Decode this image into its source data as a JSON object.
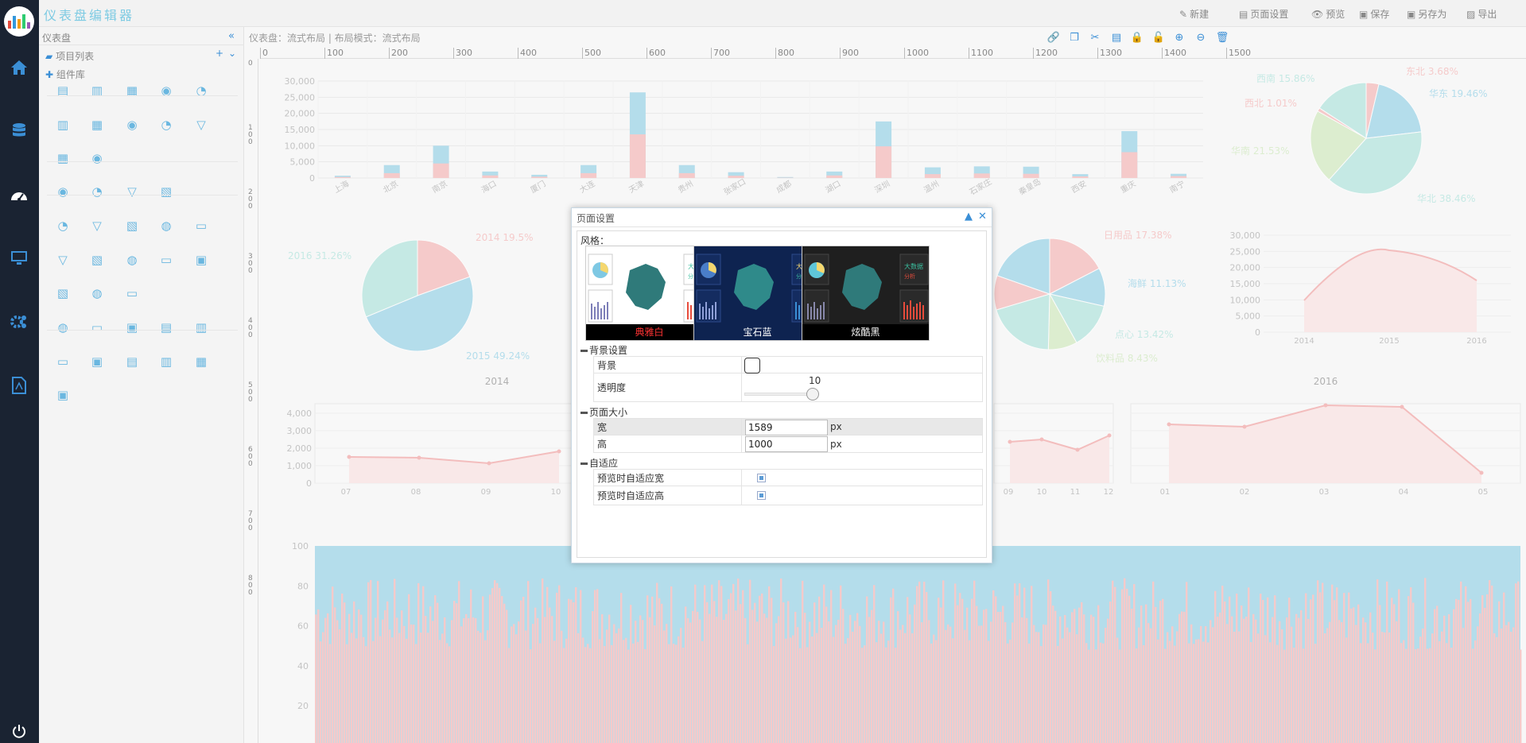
{
  "app": {
    "title": "仪表盘编辑器"
  },
  "toolbar": [
    {
      "key": "new",
      "label": "新建"
    },
    {
      "key": "page_settings",
      "label": "页面设置"
    },
    {
      "key": "preview",
      "label": "预览"
    },
    {
      "key": "save",
      "label": "保存"
    },
    {
      "key": "save_as",
      "label": "另存为"
    },
    {
      "key": "export",
      "label": "导出"
    }
  ],
  "sidebar": {
    "title": "仪表盘",
    "project_list": "项目列表",
    "component_library": "组件库"
  },
  "workspace": {
    "breadcrumb": "仪表盘：流式布局 | 布局模式：流式布局",
    "ruler_h": [
      "0",
      "100",
      "200",
      "300",
      "400",
      "500",
      "600",
      "700",
      "800",
      "900",
      "1000",
      "1100",
      "1200",
      "1300",
      "1400",
      "1500"
    ],
    "ruler_v": [
      "0",
      "1 0 0",
      "2 0 0",
      "3 0 0",
      "4 0 0",
      "5 0 0",
      "6 0 0",
      "7 0 0",
      "8 0 0"
    ]
  },
  "bar_chart": {
    "y_ticks": [
      "30,000",
      "25,000",
      "20,000",
      "15,000",
      "10,000",
      "5,000",
      "0"
    ],
    "categories": [
      "上海",
      "北京",
      "南京",
      "海口",
      "厦门",
      "大连",
      "天津",
      "贵州",
      "张家口",
      "成都",
      "湖口",
      "深圳",
      "温州",
      "石家庄",
      "秦皇岛",
      "西安",
      "重庆",
      "南宁"
    ],
    "series_a": [
      300,
      1500,
      4500,
      800,
      400,
      1500,
      13500,
      1500,
      700,
      100,
      800,
      9800,
      1200,
      1400,
      1300,
      500,
      8000,
      600
    ],
    "series_b": [
      700,
      4000,
      10000,
      2000,
      1000,
      4000,
      26500,
      4000,
      1800,
      300,
      2000,
      17500,
      3300,
      3600,
      3500,
      1200,
      14500,
      1300
    ],
    "colors": [
      "#f4a6a6",
      "#7ec8e3"
    ]
  },
  "pie_2014": {
    "caption": "2014",
    "slices": [
      {
        "label": "2014 19.5%",
        "value": 19.5,
        "color": "#f4a6a6"
      },
      {
        "label": "2015 49.24%",
        "value": 49.24,
        "color": "#7ec8e3"
      },
      {
        "label": "2016 31.26%",
        "value": 31.26,
        "color": "#9edfd6"
      }
    ]
  },
  "pie_region": {
    "slices": [
      {
        "label": "东北 3.68%",
        "value": 3.68,
        "color": "#f4a6a6"
      },
      {
        "label": "华东 19.46%",
        "value": 19.46,
        "color": "#7ec8e3"
      },
      {
        "label": "华北 38.46%",
        "value": 38.46,
        "color": "#9edfd6"
      },
      {
        "label": "华南 21.53%",
        "value": 21.53,
        "color": "#c6e5b0"
      },
      {
        "label": "西北 1.01%",
        "value": 1.01,
        "color": "#f4a6a6"
      },
      {
        "label": "西南 15.86%",
        "value": 15.86,
        "color": "#9edfd6"
      }
    ]
  },
  "pie_goods": {
    "slices": [
      {
        "label": "日用品 17.38%",
        "value": 17.38,
        "color": "#f4a6a6"
      },
      {
        "label": "海鲜 11.13%",
        "value": 11.13,
        "color": "#7ec8e3"
      },
      {
        "label": "点心 13.42%",
        "value": 13.42,
        "color": "#9edfd6"
      },
      {
        "label": "饮料品 8.43%",
        "value": 8.43,
        "color": "#c6e5b0"
      }
    ]
  },
  "area_2016": {
    "caption": "2016",
    "y_ticks": [
      "30,000",
      "25,000",
      "20,000",
      "15,000",
      "10,000",
      "5,000",
      "0"
    ],
    "x": [
      "2014",
      "2015",
      "2016"
    ]
  },
  "line_left": {
    "y_ticks": [
      "4,000",
      "3,000",
      "2,000",
      "1,000",
      "0"
    ],
    "x": [
      "07",
      "08",
      "09",
      "10"
    ]
  },
  "line_mid": {
    "x": [
      "09",
      "10",
      "11",
      "12"
    ]
  },
  "line_right": {
    "x": [
      "01",
      "02",
      "03",
      "04",
      "05"
    ]
  },
  "bottom_chart": {
    "y_ticks": [
      "100",
      "80",
      "60",
      "40",
      "20"
    ]
  },
  "dialog": {
    "title": "页面设置",
    "style_label": "风格：",
    "themes": [
      {
        "name": "典雅白",
        "color": "#ff3333"
      },
      {
        "name": "宝石蓝",
        "color": "#ffffff"
      },
      {
        "name": "炫酷黑",
        "color": "#ffffff"
      }
    ],
    "background_section": "背景设置",
    "background_label": "背景",
    "opacity_label": "透明度",
    "opacity_value": "10",
    "size_section": "页面大小",
    "width_label": "宽",
    "width_value": "1589",
    "height_label": "高",
    "height_value": "1000",
    "unit": "px",
    "adaptive_section": "自适应",
    "fit_width_label": "预览时自适应宽",
    "fit_height_label": "预览时自适应高"
  }
}
